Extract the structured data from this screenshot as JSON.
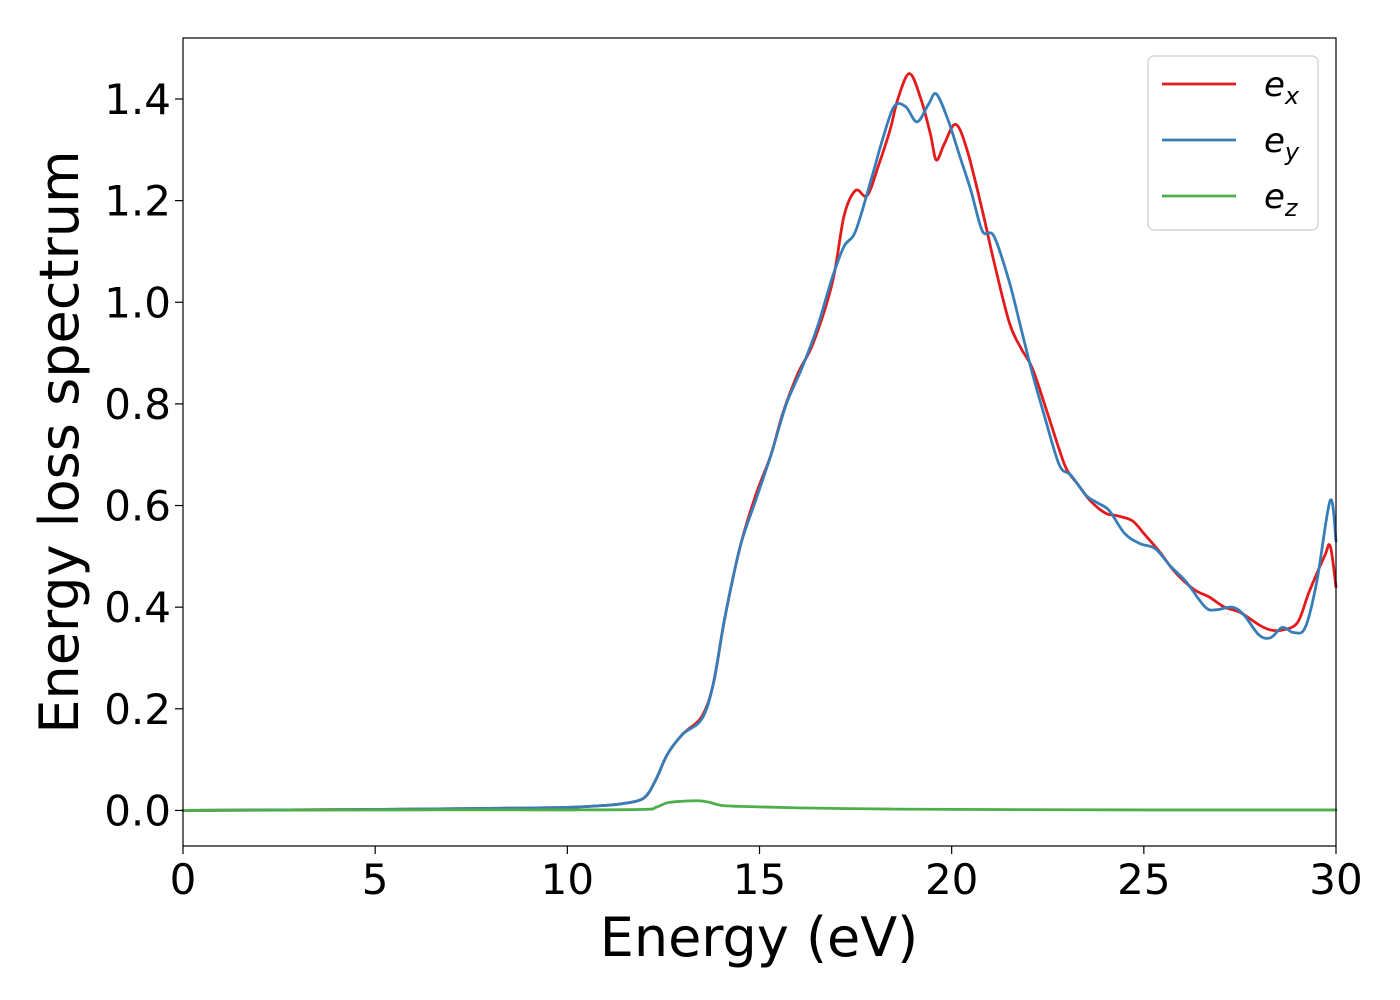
{
  "chart_data": {
    "type": "line",
    "xlabel": "Energy (eV)",
    "ylabel": "Energy loss spectrum",
    "xlim": [
      0,
      30
    ],
    "ylim": [
      -0.07,
      1.52
    ],
    "xticks": [
      0,
      5,
      10,
      15,
      20,
      25,
      30
    ],
    "xtick_labels": [
      "0",
      "5",
      "10",
      "15",
      "20",
      "25",
      "30"
    ],
    "yticks": [
      0.0,
      0.2,
      0.4,
      0.6,
      0.8,
      1.0,
      1.2,
      1.4
    ],
    "ytick_labels": [
      "0.0",
      "0.2",
      "0.4",
      "0.6",
      "0.8",
      "1.0",
      "1.2",
      "1.4"
    ],
    "grid": false,
    "legend_position": "top-right",
    "series": [
      {
        "name": "e",
        "subscript": "x",
        "color": "#e41a1c",
        "points": [
          [
            0,
            0.0
          ],
          [
            5,
            0.002
          ],
          [
            8,
            0.004
          ],
          [
            10,
            0.006
          ],
          [
            11,
            0.01
          ],
          [
            11.5,
            0.014
          ],
          [
            12,
            0.025
          ],
          [
            12.3,
            0.06
          ],
          [
            12.6,
            0.11
          ],
          [
            13.0,
            0.15
          ],
          [
            13.5,
            0.185
          ],
          [
            13.8,
            0.25
          ],
          [
            14.1,
            0.38
          ],
          [
            14.5,
            0.52
          ],
          [
            14.9,
            0.62
          ],
          [
            15.3,
            0.7
          ],
          [
            15.6,
            0.78
          ],
          [
            16.0,
            0.86
          ],
          [
            16.4,
            0.92
          ],
          [
            16.9,
            1.04
          ],
          [
            17.2,
            1.17
          ],
          [
            17.5,
            1.22
          ],
          [
            17.8,
            1.21
          ],
          [
            18.1,
            1.27
          ],
          [
            18.4,
            1.34
          ],
          [
            18.6,
            1.4
          ],
          [
            18.9,
            1.45
          ],
          [
            19.2,
            1.4
          ],
          [
            19.45,
            1.33
          ],
          [
            19.6,
            1.28
          ],
          [
            19.8,
            1.31
          ],
          [
            20.1,
            1.35
          ],
          [
            20.4,
            1.3
          ],
          [
            20.8,
            1.18
          ],
          [
            21.1,
            1.08
          ],
          [
            21.5,
            0.96
          ],
          [
            21.8,
            0.91
          ],
          [
            22.1,
            0.87
          ],
          [
            22.5,
            0.78
          ],
          [
            22.8,
            0.71
          ],
          [
            23.0,
            0.67
          ],
          [
            23.3,
            0.64
          ],
          [
            23.6,
            0.61
          ],
          [
            24.0,
            0.585
          ],
          [
            24.3,
            0.58
          ],
          [
            24.7,
            0.57
          ],
          [
            25.0,
            0.545
          ],
          [
            25.4,
            0.51
          ],
          [
            25.8,
            0.47
          ],
          [
            26.3,
            0.435
          ],
          [
            26.7,
            0.42
          ],
          [
            27.1,
            0.4
          ],
          [
            27.5,
            0.39
          ],
          [
            28.0,
            0.365
          ],
          [
            28.3,
            0.355
          ],
          [
            28.6,
            0.355
          ],
          [
            29.0,
            0.37
          ],
          [
            29.3,
            0.43
          ],
          [
            29.7,
            0.5
          ],
          [
            29.85,
            0.52
          ],
          [
            30.0,
            0.44
          ]
        ]
      },
      {
        "name": "e",
        "subscript": "y",
        "color": "#377eb8",
        "points": [
          [
            0,
            0.0
          ],
          [
            5,
            0.002
          ],
          [
            8,
            0.004
          ],
          [
            10,
            0.006
          ],
          [
            11,
            0.01
          ],
          [
            11.5,
            0.014
          ],
          [
            12,
            0.025
          ],
          [
            12.3,
            0.06
          ],
          [
            12.6,
            0.11
          ],
          [
            13.0,
            0.15
          ],
          [
            13.5,
            0.18
          ],
          [
            13.8,
            0.25
          ],
          [
            14.1,
            0.38
          ],
          [
            14.5,
            0.52
          ],
          [
            14.9,
            0.61
          ],
          [
            15.3,
            0.7
          ],
          [
            15.7,
            0.8
          ],
          [
            16.1,
            0.87
          ],
          [
            16.5,
            0.95
          ],
          [
            16.9,
            1.05
          ],
          [
            17.2,
            1.11
          ],
          [
            17.5,
            1.14
          ],
          [
            17.9,
            1.24
          ],
          [
            18.2,
            1.32
          ],
          [
            18.5,
            1.385
          ],
          [
            18.8,
            1.385
          ],
          [
            19.1,
            1.355
          ],
          [
            19.4,
            1.39
          ],
          [
            19.6,
            1.41
          ],
          [
            19.9,
            1.36
          ],
          [
            20.2,
            1.29
          ],
          [
            20.5,
            1.22
          ],
          [
            20.8,
            1.14
          ],
          [
            21.1,
            1.13
          ],
          [
            21.5,
            1.04
          ],
          [
            21.8,
            0.95
          ],
          [
            22.1,
            0.86
          ],
          [
            22.4,
            0.78
          ],
          [
            22.8,
            0.68
          ],
          [
            23.1,
            0.66
          ],
          [
            23.5,
            0.62
          ],
          [
            23.8,
            0.605
          ],
          [
            24.1,
            0.59
          ],
          [
            24.5,
            0.545
          ],
          [
            24.9,
            0.525
          ],
          [
            25.3,
            0.515
          ],
          [
            25.7,
            0.48
          ],
          [
            26.1,
            0.45
          ],
          [
            26.6,
            0.4
          ],
          [
            26.9,
            0.395
          ],
          [
            27.3,
            0.4
          ],
          [
            27.6,
            0.385
          ],
          [
            28.0,
            0.345
          ],
          [
            28.3,
            0.34
          ],
          [
            28.6,
            0.36
          ],
          [
            28.9,
            0.35
          ],
          [
            29.2,
            0.36
          ],
          [
            29.5,
            0.45
          ],
          [
            29.85,
            0.61
          ],
          [
            30.0,
            0.53
          ]
        ]
      },
      {
        "name": "e",
        "subscript": "z",
        "color": "#4daf4a",
        "points": [
          [
            0,
            0.0
          ],
          [
            5,
            0.001
          ],
          [
            10,
            0.001
          ],
          [
            12,
            0.002
          ],
          [
            12.3,
            0.006
          ],
          [
            12.6,
            0.015
          ],
          [
            13.0,
            0.018
          ],
          [
            13.4,
            0.019
          ],
          [
            13.7,
            0.016
          ],
          [
            14.0,
            0.01
          ],
          [
            14.5,
            0.008
          ],
          [
            16.0,
            0.005
          ],
          [
            18.0,
            0.003
          ],
          [
            20.0,
            0.002
          ],
          [
            25.0,
            0.001
          ],
          [
            30.0,
            0.001
          ]
        ]
      }
    ]
  }
}
